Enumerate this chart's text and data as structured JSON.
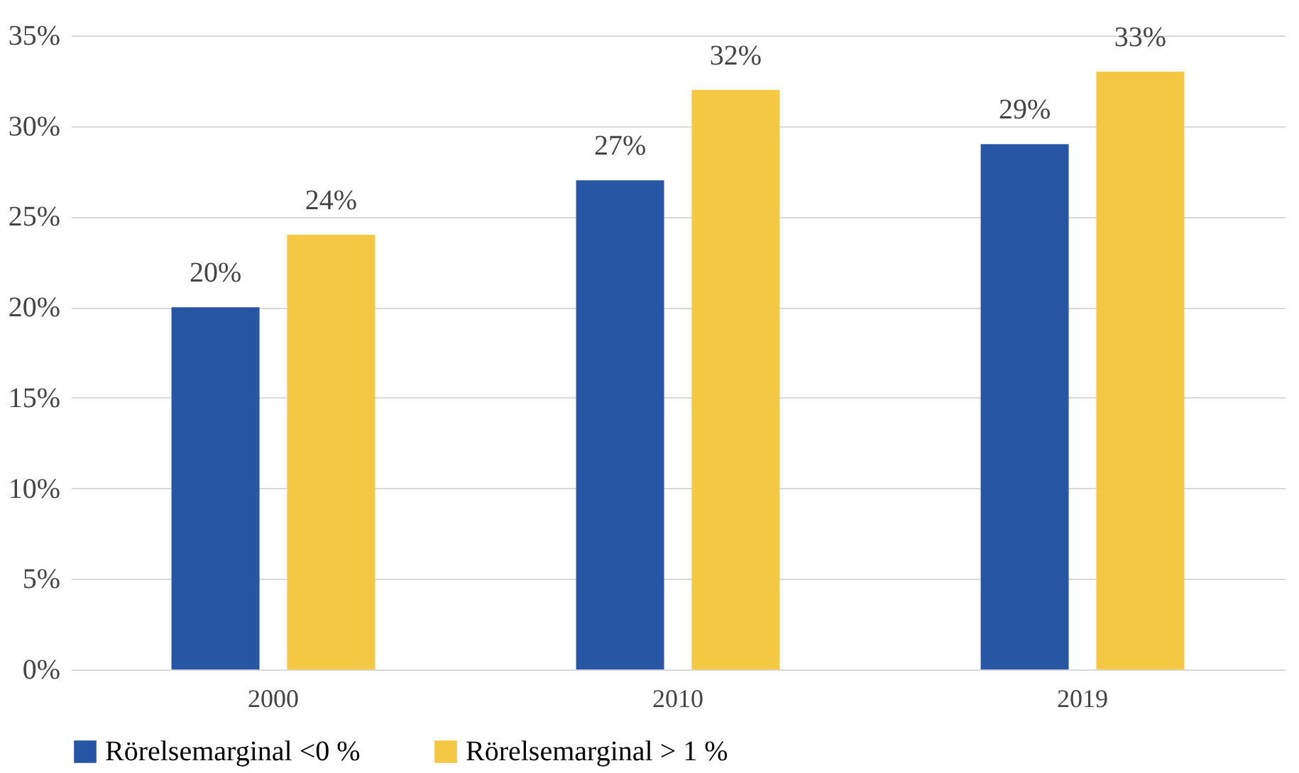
{
  "chart_data": {
    "type": "bar",
    "categories": [
      "2000",
      "2010",
      "2019"
    ],
    "series": [
      {
        "name": "Rörelsemarginal <0 %",
        "color": "#2757a4",
        "values": [
          20,
          27,
          29
        ],
        "value_labels": [
          "20%",
          "27%",
          "29%"
        ]
      },
      {
        "name": "Rörelsemarginal > 1 %",
        "color": "#f4c842",
        "values": [
          24,
          32,
          33
        ],
        "value_labels": [
          "24%",
          "32%",
          "33%"
        ]
      }
    ],
    "ylim": [
      0,
      35
    ],
    "yticks": [
      {
        "value": 0,
        "label": "0%"
      },
      {
        "value": 5,
        "label": "5%"
      },
      {
        "value": 10,
        "label": "10%"
      },
      {
        "value": 15,
        "label": "15%"
      },
      {
        "value": 20,
        "label": "20%"
      },
      {
        "value": 25,
        "label": "25%"
      },
      {
        "value": 30,
        "label": "30%"
      },
      {
        "value": 35,
        "label": "35%"
      }
    ],
    "grid": "y",
    "legend": "bottom"
  }
}
